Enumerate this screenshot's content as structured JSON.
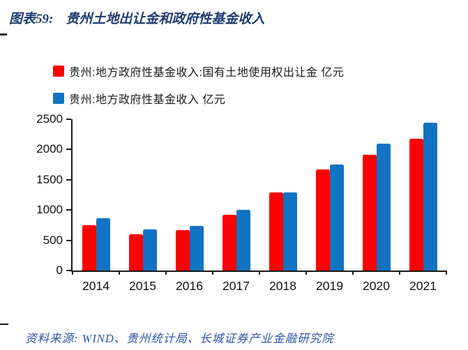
{
  "header": {
    "fig_label": "图表59:",
    "title": "贵州土地出让金和政府性基金收入"
  },
  "legend": {
    "items": [
      {
        "color": "#fe0000",
        "label": "贵州:地方政府性基金收入:国有土地使用权出让金 亿元"
      },
      {
        "color": "#1173c2",
        "label": "贵州:地方政府性基金收入 亿元"
      }
    ]
  },
  "chart_data": {
    "type": "bar",
    "title": "贵州土地出让金和政府性基金收入",
    "categories": [
      "2014",
      "2015",
      "2016",
      "2017",
      "2018",
      "2019",
      "2020",
      "2021"
    ],
    "series": [
      {
        "name": "贵州:地方政府性基金收入:国有土地使用权出让金 亿元",
        "color": "#fe0000",
        "values": [
          745,
          605,
          665,
          920,
          1285,
          1670,
          1910,
          2175
        ]
      },
      {
        "name": "贵州:地方政府性基金收入 亿元",
        "color": "#1173c2",
        "values": [
          865,
          680,
          740,
          1000,
          1285,
          1755,
          2100,
          2445
        ]
      }
    ],
    "unit": "亿元",
    "xlabel": "",
    "ylabel": "",
    "ylim": [
      0,
      2500
    ],
    "yticks": [
      0,
      500,
      1000,
      1500,
      2000,
      2500
    ],
    "grid": false,
    "legend_position": "top-left"
  },
  "footer": {
    "source": "资料来源:  WIND、贵州统计局、长城证券产业金融研究院"
  },
  "colors": {
    "title": "#1e3c6e",
    "series_red": "#fe0000",
    "series_blue": "#1173c2",
    "top_rule": "#517ea4",
    "bottom_rule": "#3a67ab",
    "rule_cap": "#26211c",
    "source_text": "#2a55a5",
    "axis": "#1a1a1a"
  }
}
